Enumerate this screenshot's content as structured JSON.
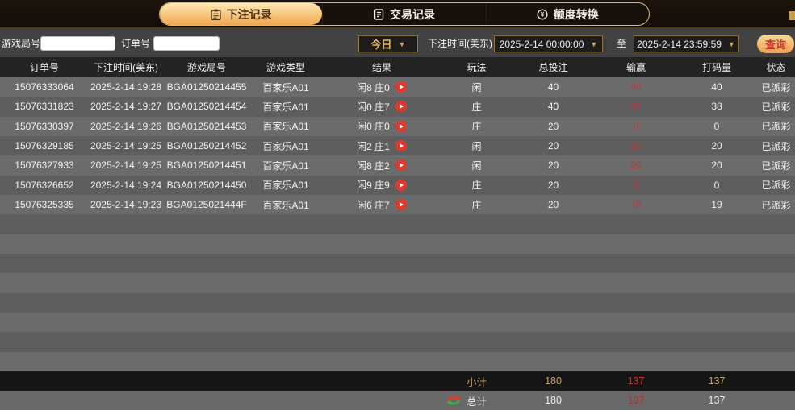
{
  "tabs": [
    {
      "label": "下注记录",
      "icon": "betting-records-clipboard",
      "active": true
    },
    {
      "label": "交易记录",
      "icon": "transaction-records-document",
      "active": false
    },
    {
      "label": "额度转换",
      "icon": "quota-transfer-coin",
      "active": false
    }
  ],
  "filters": {
    "game_round_label": "游戏局号",
    "game_round_value": "",
    "order_no_label": "订单号",
    "order_no_value": "",
    "range_preset": "今日",
    "bet_time_label": "下注时间(美东)",
    "start_time": "2025-2-14 00:00:00",
    "to_label": "至",
    "end_time": "2025-2-14 23:59:59",
    "search_label": "查询",
    "dropdown_arrow": "▼"
  },
  "table": {
    "headers": [
      "订单号",
      "下注时间(美东)",
      "游戏局号",
      "游戏类型",
      "结果",
      "玩法",
      "总投注",
      "输赢",
      "打码量",
      "状态"
    ],
    "rows": [
      {
        "order": "15076333064",
        "time": "2025-2-14 19:28",
        "round": "BGA01250214455",
        "type": "百家乐A01",
        "result": "闲8 庄0",
        "play": "闲",
        "bet": "40",
        "win": "40",
        "turnover": "40",
        "status": "已派彩"
      },
      {
        "order": "15076331823",
        "time": "2025-2-14 19:27",
        "round": "BGA01250214454",
        "type": "百家乐A01",
        "result": "闲0 庄7",
        "play": "庄",
        "bet": "40",
        "win": "38",
        "turnover": "38",
        "status": "已派彩"
      },
      {
        "order": "15076330397",
        "time": "2025-2-14 19:26",
        "round": "BGA01250214453",
        "type": "百家乐A01",
        "result": "闲0 庄0",
        "play": "庄",
        "bet": "20",
        "win": "0",
        "turnover": "0",
        "status": "已派彩"
      },
      {
        "order": "15076329185",
        "time": "2025-2-14 19:25",
        "round": "BGA01250214452",
        "type": "百家乐A01",
        "result": "闲2 庄1",
        "play": "闲",
        "bet": "20",
        "win": "20",
        "turnover": "20",
        "status": "已派彩"
      },
      {
        "order": "15076327933",
        "time": "2025-2-14 19:25",
        "round": "BGA01250214451",
        "type": "百家乐A01",
        "result": "闲8 庄2",
        "play": "闲",
        "bet": "20",
        "win": "20",
        "turnover": "20",
        "status": "已派彩"
      },
      {
        "order": "15076326652",
        "time": "2025-2-14 19:24",
        "round": "BGA01250214450",
        "type": "百家乐A01",
        "result": "闲9 庄9",
        "play": "庄",
        "bet": "20",
        "win": "0",
        "turnover": "0",
        "status": "已派彩"
      },
      {
        "order": "15076325335",
        "time": "2025-2-14 19:23",
        "round": "BGA0125021444F",
        "type": "百家乐A01",
        "result": "闲6 庄7",
        "play": "庄",
        "bet": "20",
        "win": "19",
        "turnover": "19",
        "status": "已派彩"
      }
    ],
    "empty_rows": 8,
    "subtotal": {
      "label": "小计",
      "bet": "180",
      "win": "137",
      "turnover": "137"
    },
    "total": {
      "label": "总计",
      "bet": "180",
      "win": "137",
      "turnover": "137"
    }
  },
  "colors": {
    "accent_gold": "#c9a467",
    "active_tab_gradient_top": "#ffe9b2",
    "active_tab_gradient_bottom": "#efa64e",
    "tab_border": "#dcb97c",
    "win_loss_red": "#c93535",
    "search_button_text_red": "#c2392a",
    "play_icon_red": "#e2372a",
    "row_light": "#6b6b6b",
    "row_dark": "#5e5e5e",
    "subtotal_bg": "#151515",
    "refresh_icon_red": "#e23b2e",
    "refresh_icon_green": "#3fae4a"
  }
}
